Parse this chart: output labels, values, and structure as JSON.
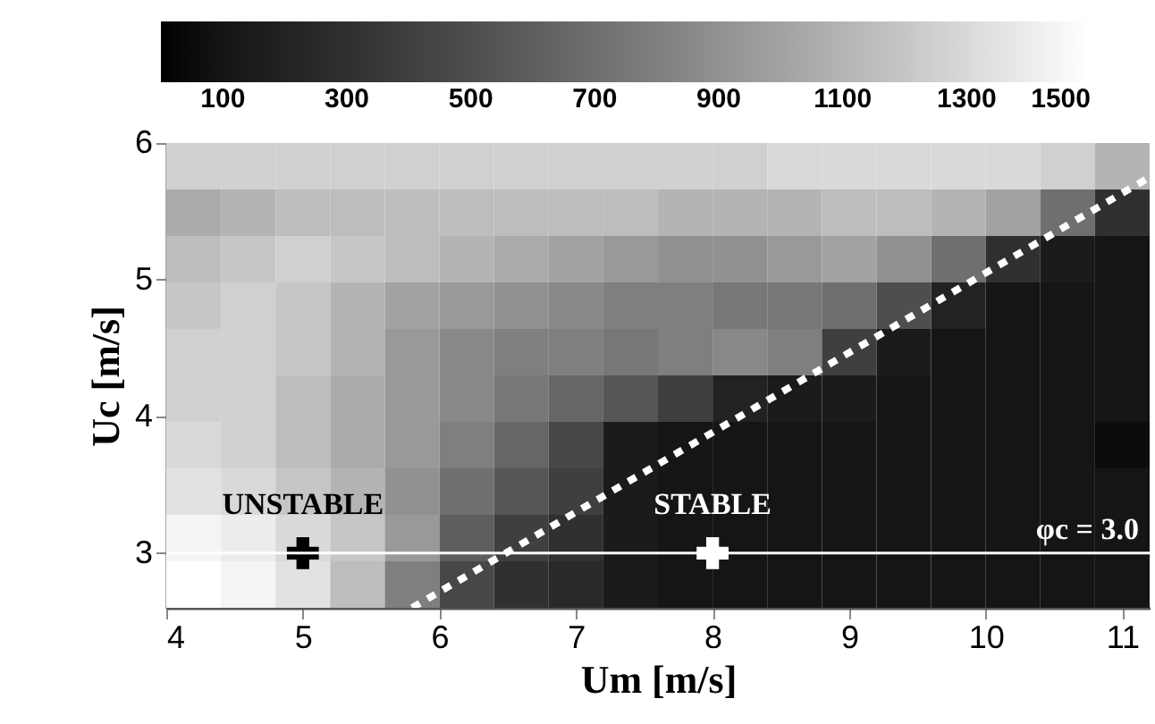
{
  "chart_data": {
    "type": "heatmap",
    "xlabel": "Um [m/s]",
    "ylabel": "Uc [m/s]",
    "x": [
      4.2,
      4.6,
      5.0,
      5.4,
      5.8,
      6.2,
      6.6,
      7.0,
      7.4,
      7.8,
      8.2,
      8.6,
      9.0,
      9.4,
      9.8,
      10.2,
      10.6,
      11.0
    ],
    "y": [
      5.83,
      5.49,
      5.15,
      4.81,
      4.47,
      4.13,
      3.79,
      3.45,
      3.11,
      2.77
    ],
    "cells": [
      [
        1250,
        1250,
        1250,
        1250,
        1250,
        1250,
        1250,
        1250,
        1250,
        1250,
        1250,
        1300,
        1300,
        1300,
        1300,
        1300,
        1250,
        1100
      ],
      [
        1050,
        1100,
        1150,
        1150,
        1150,
        1150,
        1150,
        1150,
        1150,
        1100,
        1100,
        1100,
        1150,
        1150,
        1100,
        1000,
        700,
        300
      ],
      [
        1150,
        1200,
        1250,
        1200,
        1150,
        1100,
        1050,
        1000,
        950,
        900,
        900,
        950,
        1000,
        900,
        700,
        300,
        150,
        100
      ],
      [
        1200,
        1250,
        1200,
        1100,
        1000,
        950,
        900,
        850,
        800,
        800,
        750,
        750,
        700,
        500,
        200,
        100,
        100,
        100
      ],
      [
        1250,
        1250,
        1200,
        1100,
        950,
        850,
        800,
        800,
        750,
        800,
        850,
        800,
        400,
        150,
        100,
        100,
        100,
        100
      ],
      [
        1250,
        1250,
        1150,
        1050,
        950,
        850,
        750,
        650,
        550,
        400,
        200,
        150,
        150,
        100,
        100,
        100,
        100,
        100
      ],
      [
        1300,
        1250,
        1150,
        1050,
        950,
        800,
        650,
        450,
        150,
        100,
        100,
        100,
        100,
        100,
        100,
        100,
        100,
        50
      ],
      [
        1350,
        1300,
        1200,
        1100,
        900,
        700,
        550,
        400,
        150,
        100,
        100,
        100,
        100,
        100,
        100,
        100,
        100,
        100
      ],
      [
        1450,
        1400,
        1300,
        1200,
        950,
        600,
        400,
        300,
        150,
        100,
        100,
        100,
        100,
        100,
        100,
        100,
        100,
        100
      ],
      [
        1500,
        1450,
        1350,
        1150,
        800,
        450,
        300,
        250,
        150,
        100,
        100,
        100,
        100,
        100,
        100,
        100,
        100,
        100
      ]
    ],
    "clim": [
      0,
      1500
    ],
    "cticks": [
      100,
      300,
      500,
      700,
      900,
      1100,
      1300,
      1500
    ],
    "xlim": [
      4,
      11.2
    ],
    "xticks": [
      4,
      5,
      6,
      7,
      8,
      9,
      10,
      11
    ],
    "ylim": [
      2.6,
      6
    ],
    "yticks": [
      3,
      4,
      5,
      6
    ],
    "series": [
      {
        "type": "line",
        "color": "#ffffff",
        "line_style": "dotted",
        "x": [
          5.8,
          11.2
        ],
        "values": [
          2.6,
          5.75
        ]
      },
      {
        "type": "scatter",
        "marker": "cross",
        "colors": [
          "#000000",
          "#ffffff"
        ],
        "x": [
          5,
          8
        ],
        "values": [
          3,
          3
        ]
      }
    ],
    "ref_lines": [
      {
        "axis": "y",
        "value": 3,
        "label": "φc = 3.0",
        "color": "#ffffff"
      }
    ],
    "annotations": [
      "UNSTABLE",
      "STABLE"
    ],
    "grid": false
  }
}
